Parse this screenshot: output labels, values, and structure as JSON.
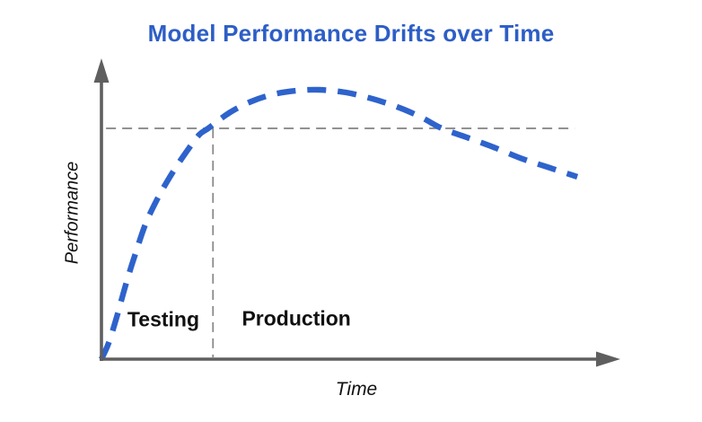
{
  "colors": {
    "title_blue": "#2d5ec6",
    "axis_gray": "#5f5f5f",
    "guide_gray": "#8a8a8a",
    "label_black": "#111111"
  },
  "chart_data": {
    "type": "line",
    "title": "Model Performance Drifts over Time",
    "xlabel": "Time",
    "ylabel": "Performance",
    "grid": false,
    "legend": "none",
    "x_axis": {
      "range": [
        0,
        1
      ],
      "tick_labels": "none",
      "arrow": true
    },
    "y_axis": {
      "range": [
        0,
        1
      ],
      "tick_labels": "none",
      "arrow": true
    },
    "series": [
      {
        "name": "model-performance",
        "style": "dashed",
        "color": "#2e63cc",
        "points": [
          [
            0.0,
            0.0
          ],
          [
            0.014,
            0.055
          ],
          [
            0.03,
            0.145
          ],
          [
            0.047,
            0.252
          ],
          [
            0.065,
            0.354
          ],
          [
            0.086,
            0.462
          ],
          [
            0.109,
            0.548
          ],
          [
            0.135,
            0.628
          ],
          [
            0.165,
            0.708
          ],
          [
            0.191,
            0.769
          ],
          [
            0.209,
            0.791
          ],
          [
            0.249,
            0.843
          ],
          [
            0.293,
            0.883
          ],
          [
            0.337,
            0.908
          ],
          [
            0.381,
            0.92
          ],
          [
            0.425,
            0.923
          ],
          [
            0.477,
            0.914
          ],
          [
            0.53,
            0.892
          ],
          [
            0.582,
            0.862
          ],
          [
            0.626,
            0.828
          ],
          [
            0.665,
            0.791
          ],
          [
            0.714,
            0.76
          ],
          [
            0.767,
            0.726
          ],
          [
            0.819,
            0.689
          ],
          [
            0.872,
            0.658
          ],
          [
            0.93,
            0.625
          ]
        ]
      }
    ],
    "reference_lines": [
      {
        "name": "testing-performance-threshold",
        "orientation": "horizontal",
        "y": 0.791,
        "x_start": 0.009,
        "x_end": 0.925,
        "style": "dashed",
        "color": "#8a8a8a"
      },
      {
        "name": "testing-production-divider",
        "orientation": "vertical",
        "x": 0.218,
        "y_start": 0.791,
        "y_end": 0.006,
        "style": "dashed",
        "color": "#8a8a8a"
      }
    ],
    "annotations": [
      {
        "text": "Testing",
        "x": 0.121,
        "y": 0.135
      },
      {
        "text": "Production",
        "x": 0.381,
        "y": 0.138
      }
    ]
  }
}
